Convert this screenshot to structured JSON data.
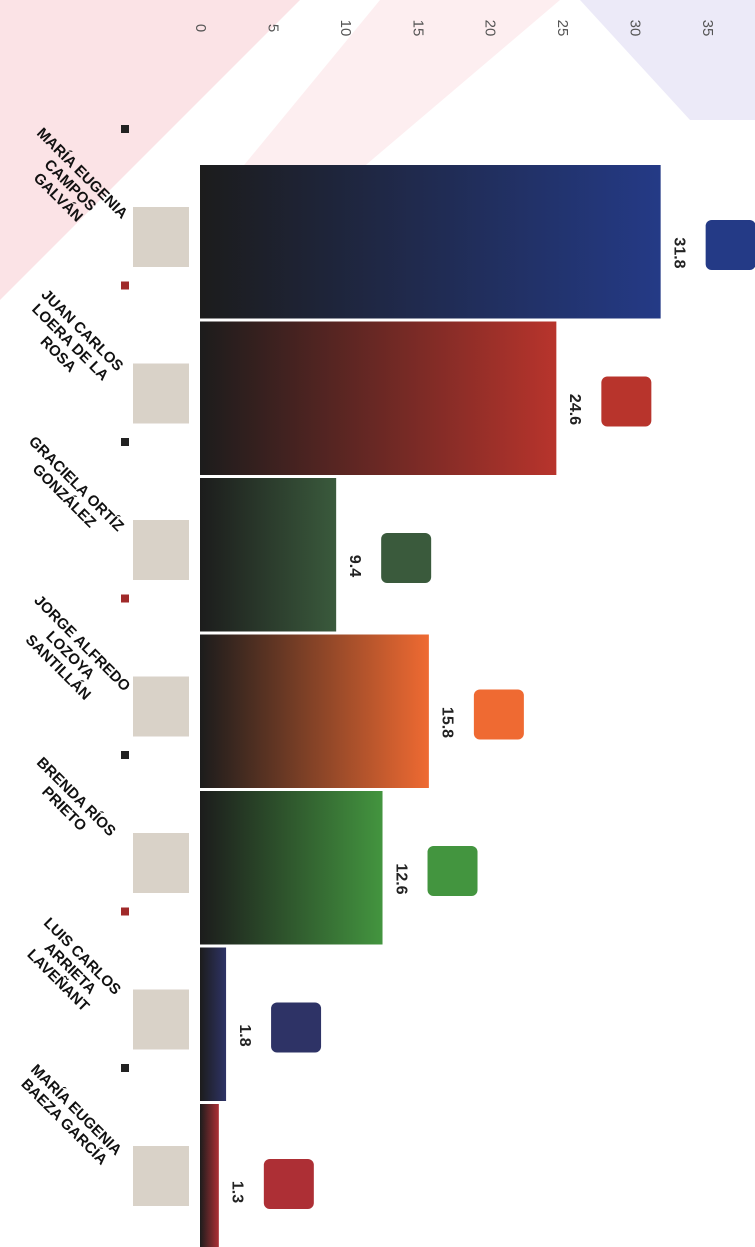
{
  "chart_data": {
    "type": "bar",
    "categories": [
      "MARÍA EUGENIA CAMPOS GALVÁN",
      "JUAN CARLOS LOERA DE LA ROSA",
      "GRACIELA ORTÍZ GONZÁLEZ",
      "JORGE ALFREDO LOZOYA SANTILLÁN",
      "BRENDA RÍOS PRIETO",
      "LUIS CARLOS ARRIETA LAVEÑANT",
      "MARÍA EUGENIA BAEZA GARCÍA"
    ],
    "values": [
      31.8,
      24.6,
      9.4,
      15.8,
      12.6,
      1.8,
      1.3
    ],
    "colors": [
      "#243a86",
      "#b8342c",
      "#3a5a3c",
      "#ef6a32",
      "#43953f",
      "#2e3366",
      "#ad2f35"
    ],
    "ylim": [
      0,
      35
    ],
    "yticks": [
      0,
      5,
      10,
      15,
      20,
      25,
      30,
      35
    ],
    "grid": false
  }
}
